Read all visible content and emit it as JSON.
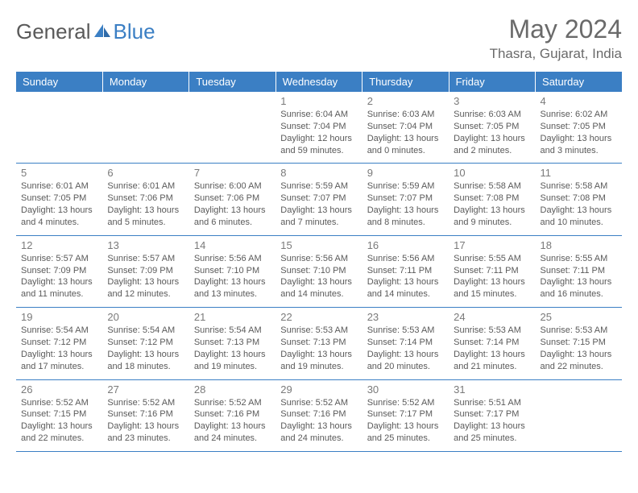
{
  "brand": {
    "part1": "General",
    "part2": "Blue"
  },
  "title": "May 2024",
  "location": "Thasra, Gujarat, India",
  "colors": {
    "header_bg": "#3b7fc4",
    "header_text": "#ffffff",
    "border": "#3b7fc4",
    "body_text": "#5a5a5a",
    "daynum_text": "#7a7a7a",
    "background": "#ffffff"
  },
  "typography": {
    "month_title_fontsize": 32,
    "location_fontsize": 17,
    "header_fontsize": 13,
    "cell_fontsize": 11
  },
  "day_headers": [
    "Sunday",
    "Monday",
    "Tuesday",
    "Wednesday",
    "Thursday",
    "Friday",
    "Saturday"
  ],
  "weeks": [
    [
      null,
      null,
      null,
      {
        "n": "1",
        "sr": "Sunrise: 6:04 AM",
        "ss": "Sunset: 7:04 PM",
        "d1": "Daylight: 12 hours",
        "d2": "and 59 minutes."
      },
      {
        "n": "2",
        "sr": "Sunrise: 6:03 AM",
        "ss": "Sunset: 7:04 PM",
        "d1": "Daylight: 13 hours",
        "d2": "and 0 minutes."
      },
      {
        "n": "3",
        "sr": "Sunrise: 6:03 AM",
        "ss": "Sunset: 7:05 PM",
        "d1": "Daylight: 13 hours",
        "d2": "and 2 minutes."
      },
      {
        "n": "4",
        "sr": "Sunrise: 6:02 AM",
        "ss": "Sunset: 7:05 PM",
        "d1": "Daylight: 13 hours",
        "d2": "and 3 minutes."
      }
    ],
    [
      {
        "n": "5",
        "sr": "Sunrise: 6:01 AM",
        "ss": "Sunset: 7:05 PM",
        "d1": "Daylight: 13 hours",
        "d2": "and 4 minutes."
      },
      {
        "n": "6",
        "sr": "Sunrise: 6:01 AM",
        "ss": "Sunset: 7:06 PM",
        "d1": "Daylight: 13 hours",
        "d2": "and 5 minutes."
      },
      {
        "n": "7",
        "sr": "Sunrise: 6:00 AM",
        "ss": "Sunset: 7:06 PM",
        "d1": "Daylight: 13 hours",
        "d2": "and 6 minutes."
      },
      {
        "n": "8",
        "sr": "Sunrise: 5:59 AM",
        "ss": "Sunset: 7:07 PM",
        "d1": "Daylight: 13 hours",
        "d2": "and 7 minutes."
      },
      {
        "n": "9",
        "sr": "Sunrise: 5:59 AM",
        "ss": "Sunset: 7:07 PM",
        "d1": "Daylight: 13 hours",
        "d2": "and 8 minutes."
      },
      {
        "n": "10",
        "sr": "Sunrise: 5:58 AM",
        "ss": "Sunset: 7:08 PM",
        "d1": "Daylight: 13 hours",
        "d2": "and 9 minutes."
      },
      {
        "n": "11",
        "sr": "Sunrise: 5:58 AM",
        "ss": "Sunset: 7:08 PM",
        "d1": "Daylight: 13 hours",
        "d2": "and 10 minutes."
      }
    ],
    [
      {
        "n": "12",
        "sr": "Sunrise: 5:57 AM",
        "ss": "Sunset: 7:09 PM",
        "d1": "Daylight: 13 hours",
        "d2": "and 11 minutes."
      },
      {
        "n": "13",
        "sr": "Sunrise: 5:57 AM",
        "ss": "Sunset: 7:09 PM",
        "d1": "Daylight: 13 hours",
        "d2": "and 12 minutes."
      },
      {
        "n": "14",
        "sr": "Sunrise: 5:56 AM",
        "ss": "Sunset: 7:10 PM",
        "d1": "Daylight: 13 hours",
        "d2": "and 13 minutes."
      },
      {
        "n": "15",
        "sr": "Sunrise: 5:56 AM",
        "ss": "Sunset: 7:10 PM",
        "d1": "Daylight: 13 hours",
        "d2": "and 14 minutes."
      },
      {
        "n": "16",
        "sr": "Sunrise: 5:56 AM",
        "ss": "Sunset: 7:11 PM",
        "d1": "Daylight: 13 hours",
        "d2": "and 14 minutes."
      },
      {
        "n": "17",
        "sr": "Sunrise: 5:55 AM",
        "ss": "Sunset: 7:11 PM",
        "d1": "Daylight: 13 hours",
        "d2": "and 15 minutes."
      },
      {
        "n": "18",
        "sr": "Sunrise: 5:55 AM",
        "ss": "Sunset: 7:11 PM",
        "d1": "Daylight: 13 hours",
        "d2": "and 16 minutes."
      }
    ],
    [
      {
        "n": "19",
        "sr": "Sunrise: 5:54 AM",
        "ss": "Sunset: 7:12 PM",
        "d1": "Daylight: 13 hours",
        "d2": "and 17 minutes."
      },
      {
        "n": "20",
        "sr": "Sunrise: 5:54 AM",
        "ss": "Sunset: 7:12 PM",
        "d1": "Daylight: 13 hours",
        "d2": "and 18 minutes."
      },
      {
        "n": "21",
        "sr": "Sunrise: 5:54 AM",
        "ss": "Sunset: 7:13 PM",
        "d1": "Daylight: 13 hours",
        "d2": "and 19 minutes."
      },
      {
        "n": "22",
        "sr": "Sunrise: 5:53 AM",
        "ss": "Sunset: 7:13 PM",
        "d1": "Daylight: 13 hours",
        "d2": "and 19 minutes."
      },
      {
        "n": "23",
        "sr": "Sunrise: 5:53 AM",
        "ss": "Sunset: 7:14 PM",
        "d1": "Daylight: 13 hours",
        "d2": "and 20 minutes."
      },
      {
        "n": "24",
        "sr": "Sunrise: 5:53 AM",
        "ss": "Sunset: 7:14 PM",
        "d1": "Daylight: 13 hours",
        "d2": "and 21 minutes."
      },
      {
        "n": "25",
        "sr": "Sunrise: 5:53 AM",
        "ss": "Sunset: 7:15 PM",
        "d1": "Daylight: 13 hours",
        "d2": "and 22 minutes."
      }
    ],
    [
      {
        "n": "26",
        "sr": "Sunrise: 5:52 AM",
        "ss": "Sunset: 7:15 PM",
        "d1": "Daylight: 13 hours",
        "d2": "and 22 minutes."
      },
      {
        "n": "27",
        "sr": "Sunrise: 5:52 AM",
        "ss": "Sunset: 7:16 PM",
        "d1": "Daylight: 13 hours",
        "d2": "and 23 minutes."
      },
      {
        "n": "28",
        "sr": "Sunrise: 5:52 AM",
        "ss": "Sunset: 7:16 PM",
        "d1": "Daylight: 13 hours",
        "d2": "and 24 minutes."
      },
      {
        "n": "29",
        "sr": "Sunrise: 5:52 AM",
        "ss": "Sunset: 7:16 PM",
        "d1": "Daylight: 13 hours",
        "d2": "and 24 minutes."
      },
      {
        "n": "30",
        "sr": "Sunrise: 5:52 AM",
        "ss": "Sunset: 7:17 PM",
        "d1": "Daylight: 13 hours",
        "d2": "and 25 minutes."
      },
      {
        "n": "31",
        "sr": "Sunrise: 5:51 AM",
        "ss": "Sunset: 7:17 PM",
        "d1": "Daylight: 13 hours",
        "d2": "and 25 minutes."
      },
      null
    ]
  ]
}
